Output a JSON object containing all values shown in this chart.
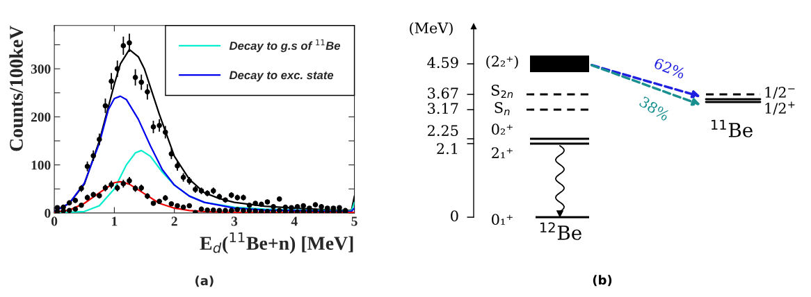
{
  "chart_data": [
    {
      "type": "line",
      "xlabel": "E$_{d}$($^{11}$Be+n) [MeV]",
      "ylabel": "Counts/100keV",
      "xlim": [
        0,
        5
      ],
      "ylim": [
        0,
        390
      ],
      "xticks": [
        0,
        1,
        2,
        3,
        4,
        5
      ],
      "yticks": [
        0,
        {
          "value": 50,
          "label": null
        },
        100,
        {
          "value": 150,
          "label": null
        },
        200,
        {
          "value": 250,
          "label": null
        },
        300,
        {
          "value": 350,
          "label": null
        }
      ],
      "legend": "top right",
      "annotations": [
        "(a)"
      ],
      "series": [
        {
          "type": "scatter",
          "color": "#000000",
          "marker": "circle",
          "x": [
            0.05,
            0.15,
            0.25,
            0.35,
            0.45,
            0.55,
            0.65,
            0.75,
            0.85,
            0.95,
            1.05,
            1.15,
            1.25,
            1.35,
            1.45,
            1.55,
            1.65,
            1.75,
            1.85,
            1.95,
            2.05,
            2.15,
            2.25,
            2.35,
            2.45,
            2.55,
            2.65,
            2.75,
            2.85,
            2.95,
            3.05,
            3.15,
            3.25,
            3.35,
            3.45,
            3.55,
            3.65,
            3.75,
            3.85,
            3.95,
            4.05,
            4.15,
            4.25,
            4.35,
            4.45,
            4.55,
            4.65,
            4.75,
            4.85
          ],
          "values": [
            11,
            12,
            21,
            26,
            51,
            97,
            119,
            153,
            223,
            274,
            300,
            348,
            354,
            282,
            272,
            252,
            179,
            182,
            168,
            123,
            98,
            74,
            67,
            49,
            46,
            41,
            46,
            34,
            27,
            37,
            32,
            32,
            16,
            20,
            18,
            23,
            13,
            29,
            12,
            11,
            13,
            15,
            10,
            17,
            13,
            10,
            10,
            11,
            5
          ],
          "errors": [
            3,
            3,
            5,
            5,
            7,
            10,
            11,
            12,
            15,
            17,
            17,
            19,
            19,
            17,
            16,
            16,
            13,
            13,
            13,
            11,
            10,
            9,
            8,
            7,
            7,
            6,
            7,
            6,
            5,
            6,
            6,
            6,
            4,
            4,
            4,
            5,
            4,
            5,
            3,
            3,
            4,
            4,
            3,
            4,
            4,
            3,
            3,
            3,
            2
          ]
        },
        {
          "type": "scatter",
          "color": "#000000",
          "marker": "circle",
          "x": [
            0.05,
            0.15,
            0.25,
            0.35,
            0.45,
            0.55,
            0.65,
            0.75,
            0.85,
            0.95,
            1.05,
            1.15,
            1.25,
            1.35,
            1.45,
            1.55,
            1.65,
            1.75,
            1.85,
            1.95,
            2.05,
            2.15,
            2.25,
            2.35,
            2.45,
            2.55,
            2.65,
            2.75,
            2.85,
            2.95,
            3.05,
            3.15,
            3.25,
            3.35,
            3.45,
            3.55,
            3.65,
            3.75,
            3.85,
            3.95,
            4.05,
            4.15,
            4.25,
            4.35,
            4.45,
            4.55,
            4.65,
            4.75,
            4.85
          ],
          "values": [
            3,
            4,
            5,
            8,
            16,
            32,
            38,
            36,
            52,
            59,
            52,
            61,
            67,
            51,
            52,
            35,
            20,
            24,
            31,
            19,
            15,
            12,
            15,
            1,
            8,
            6,
            6,
            5,
            5,
            5,
            7,
            5,
            5,
            4,
            3,
            3,
            3,
            5,
            3,
            2,
            2,
            3,
            3,
            4,
            2,
            3,
            3,
            3,
            2
          ],
          "errors": [
            2,
            2,
            2,
            3,
            4,
            6,
            6,
            6,
            7,
            8,
            7,
            8,
            8,
            7,
            7,
            6,
            4,
            5,
            6,
            4,
            4,
            3,
            4,
            null,
            3,
            2,
            2,
            2,
            2,
            2,
            3,
            2,
            2,
            2,
            2,
            2,
            2,
            2,
            2,
            null,
            null,
            2,
            2,
            2,
            null,
            2,
            2,
            2,
            null
          ]
        },
        {
          "type": "line",
          "color": "#000000",
          "x": [
            0,
            0.25,
            0.5,
            0.75,
            1.0,
            1.1,
            1.25,
            1.4,
            1.5,
            1.75,
            2.0,
            2.25,
            2.5,
            2.75,
            3.0,
            3.5,
            4.0,
            4.5,
            4.95,
            5.0
          ],
          "values": [
            3,
            20,
            60,
            150,
            268,
            310,
            340,
            325,
            300,
            205,
            118,
            70,
            42,
            30,
            22,
            14,
            10,
            7,
            5,
            35
          ]
        },
        {
          "type": "line",
          "color": "#00eecc",
          "name": "Decay to g.s of $^{11}$Be",
          "x": [
            0,
            0.5,
            0.75,
            1.0,
            1.2,
            1.35,
            1.45,
            1.6,
            1.8,
            2.0,
            2.25,
            2.5,
            3.0,
            3.5,
            4.0,
            4.5,
            4.95,
            5.0
          ],
          "values": [
            0,
            3,
            15,
            50,
            100,
            125,
            130,
            118,
            85,
            58,
            35,
            22,
            12,
            8,
            6,
            5,
            4,
            22
          ]
        },
        {
          "type": "line",
          "color": "#0000ee",
          "name": "Decay to exc. state",
          "x": [
            0,
            0.25,
            0.5,
            0.75,
            0.9,
            1.0,
            1.1,
            1.2,
            1.4,
            1.6,
            1.8,
            2.0,
            2.25,
            2.5,
            3.0,
            3.5,
            4.0,
            4.5,
            4.95,
            5.0
          ],
          "values": [
            3,
            20,
            62,
            145,
            215,
            238,
            243,
            236,
            195,
            140,
            90,
            58,
            35,
            22,
            10,
            6,
            5,
            4,
            3,
            10
          ]
        },
        {
          "type": "line",
          "color": "#ee0000",
          "x": [
            0,
            0.25,
            0.5,
            0.75,
            1.0,
            1.1,
            1.25,
            1.5,
            1.75,
            2.0,
            2.25,
            2.5,
            3.0,
            4.0,
            5.0
          ],
          "values": [
            1,
            6,
            20,
            42,
            63,
            65,
            60,
            40,
            20,
            10,
            5,
            3,
            1,
            1,
            1
          ]
        }
      ]
    },
    {
      "type": "other",
      "annotations": [
        "(MeV)",
        "4.59",
        "3.67",
        "3.17",
        "2.25",
        "2.1",
        "0",
        "(2₂⁺)",
        "S$_{2n}$",
        "S$_{n}$",
        "0₂⁺",
        "2₁⁺",
        "0₁⁺",
        "$^{12}$Be",
        "62%",
        "38%",
        "1/2$^{−}$",
        "1/2$^{+}$",
        "$^{11}$Be",
        "(b)"
      ]
    }
  ]
}
